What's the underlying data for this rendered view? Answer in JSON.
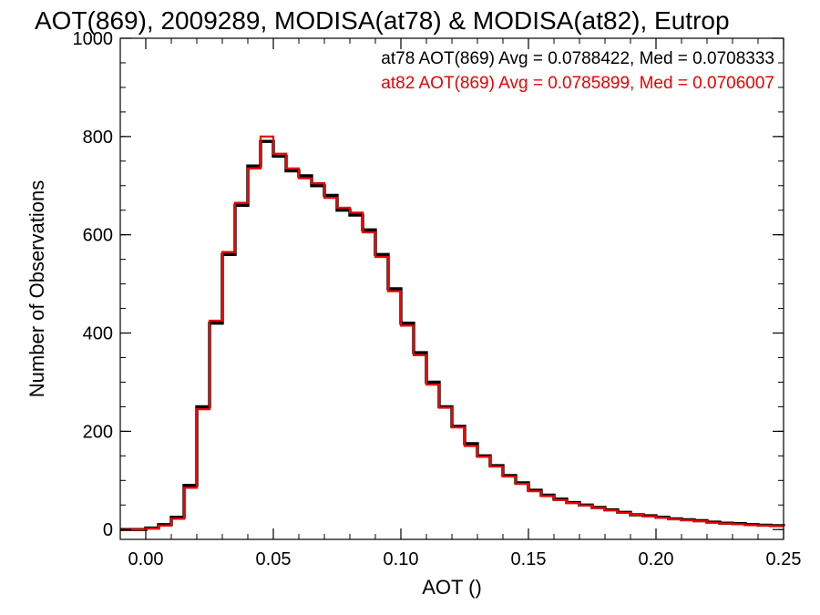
{
  "chart_data": {
    "type": "line",
    "title": "AOT(869), 2009289, MODISA(at78) & MODISA(at82), Eutrop",
    "xlabel": "AOT ()",
    "ylabel": "Number of Observations",
    "xlim": [
      -0.01,
      0.25
    ],
    "ylim": [
      -20,
      1000
    ],
    "xticks": [
      "0.00",
      "0.05",
      "0.10",
      "0.15",
      "0.20",
      "0.25"
    ],
    "xtick_values": [
      0.0,
      0.05,
      0.1,
      0.15,
      0.2,
      0.25
    ],
    "yticks": [
      "0",
      "200",
      "400",
      "600",
      "800",
      "1000"
    ],
    "ytick_values": [
      0,
      200,
      400,
      600,
      800,
      1000
    ],
    "grid": false,
    "step": true,
    "x": [
      -0.01,
      0.0,
      0.005,
      0.01,
      0.015,
      0.02,
      0.025,
      0.03,
      0.035,
      0.04,
      0.045,
      0.05,
      0.055,
      0.06,
      0.065,
      0.07,
      0.075,
      0.08,
      0.085,
      0.09,
      0.095,
      0.1,
      0.105,
      0.11,
      0.115,
      0.12,
      0.125,
      0.13,
      0.135,
      0.14,
      0.145,
      0.15,
      0.155,
      0.16,
      0.165,
      0.17,
      0.175,
      0.18,
      0.185,
      0.19,
      0.195,
      0.2,
      0.205,
      0.21,
      0.215,
      0.22,
      0.225,
      0.23,
      0.235,
      0.24,
      0.245,
      0.25
    ],
    "series": [
      {
        "name": "at78",
        "color": "#000000",
        "stat_label": "at78 AOT(869) Avg = 0.0788422, Med = 0.0708333",
        "values": [
          0,
          3,
          10,
          25,
          90,
          250,
          420,
          560,
          660,
          740,
          790,
          760,
          730,
          720,
          700,
          680,
          650,
          640,
          610,
          560,
          490,
          420,
          360,
          300,
          250,
          210,
          175,
          150,
          130,
          110,
          95,
          80,
          70,
          62,
          55,
          50,
          45,
          40,
          35,
          30,
          28,
          25,
          22,
          20,
          18,
          15,
          13,
          12,
          10,
          9,
          8,
          7
        ]
      },
      {
        "name": "at82",
        "color": "#ee0000",
        "stat_label": "at82 AOT(869) Avg = 0.0785899, Med = 0.0706007",
        "values": [
          0,
          2,
          8,
          22,
          85,
          245,
          425,
          565,
          665,
          735,
          800,
          765,
          735,
          715,
          705,
          675,
          655,
          645,
          605,
          555,
          485,
          415,
          355,
          295,
          248,
          208,
          170,
          148,
          128,
          108,
          93,
          78,
          68,
          60,
          54,
          49,
          44,
          39,
          34,
          30,
          27,
          24,
          21,
          19,
          17,
          14,
          12,
          11,
          9,
          8,
          7,
          6
        ]
      }
    ]
  }
}
